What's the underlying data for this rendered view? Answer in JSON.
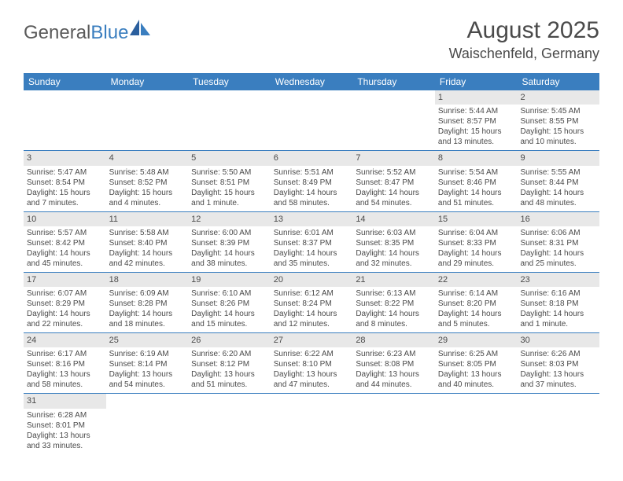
{
  "logo": {
    "general": "General",
    "blue": "Blue"
  },
  "title": "August 2025",
  "location": "Waischenfeld, Germany",
  "colors": {
    "header_bg": "#3a7ebf",
    "header_text": "#ffffff",
    "daynum_bg": "#e8e8e8",
    "body_text": "#4a4a4a",
    "border": "#3a7ebf"
  },
  "typography": {
    "title_fontsize": 30,
    "location_fontsize": 18,
    "dayheader_fontsize": 12,
    "cell_fontsize": 10
  },
  "day_names": [
    "Sunday",
    "Monday",
    "Tuesday",
    "Wednesday",
    "Thursday",
    "Friday",
    "Saturday"
  ],
  "weeks": [
    [
      null,
      null,
      null,
      null,
      null,
      {
        "n": "1",
        "sunrise": "Sunrise: 5:44 AM",
        "sunset": "Sunset: 8:57 PM",
        "day1": "Daylight: 15 hours",
        "day2": "and 13 minutes."
      },
      {
        "n": "2",
        "sunrise": "Sunrise: 5:45 AM",
        "sunset": "Sunset: 8:55 PM",
        "day1": "Daylight: 15 hours",
        "day2": "and 10 minutes."
      }
    ],
    [
      {
        "n": "3",
        "sunrise": "Sunrise: 5:47 AM",
        "sunset": "Sunset: 8:54 PM",
        "day1": "Daylight: 15 hours",
        "day2": "and 7 minutes."
      },
      {
        "n": "4",
        "sunrise": "Sunrise: 5:48 AM",
        "sunset": "Sunset: 8:52 PM",
        "day1": "Daylight: 15 hours",
        "day2": "and 4 minutes."
      },
      {
        "n": "5",
        "sunrise": "Sunrise: 5:50 AM",
        "sunset": "Sunset: 8:51 PM",
        "day1": "Daylight: 15 hours",
        "day2": "and 1 minute."
      },
      {
        "n": "6",
        "sunrise": "Sunrise: 5:51 AM",
        "sunset": "Sunset: 8:49 PM",
        "day1": "Daylight: 14 hours",
        "day2": "and 58 minutes."
      },
      {
        "n": "7",
        "sunrise": "Sunrise: 5:52 AM",
        "sunset": "Sunset: 8:47 PM",
        "day1": "Daylight: 14 hours",
        "day2": "and 54 minutes."
      },
      {
        "n": "8",
        "sunrise": "Sunrise: 5:54 AM",
        "sunset": "Sunset: 8:46 PM",
        "day1": "Daylight: 14 hours",
        "day2": "and 51 minutes."
      },
      {
        "n": "9",
        "sunrise": "Sunrise: 5:55 AM",
        "sunset": "Sunset: 8:44 PM",
        "day1": "Daylight: 14 hours",
        "day2": "and 48 minutes."
      }
    ],
    [
      {
        "n": "10",
        "sunrise": "Sunrise: 5:57 AM",
        "sunset": "Sunset: 8:42 PM",
        "day1": "Daylight: 14 hours",
        "day2": "and 45 minutes."
      },
      {
        "n": "11",
        "sunrise": "Sunrise: 5:58 AM",
        "sunset": "Sunset: 8:40 PM",
        "day1": "Daylight: 14 hours",
        "day2": "and 42 minutes."
      },
      {
        "n": "12",
        "sunrise": "Sunrise: 6:00 AM",
        "sunset": "Sunset: 8:39 PM",
        "day1": "Daylight: 14 hours",
        "day2": "and 38 minutes."
      },
      {
        "n": "13",
        "sunrise": "Sunrise: 6:01 AM",
        "sunset": "Sunset: 8:37 PM",
        "day1": "Daylight: 14 hours",
        "day2": "and 35 minutes."
      },
      {
        "n": "14",
        "sunrise": "Sunrise: 6:03 AM",
        "sunset": "Sunset: 8:35 PM",
        "day1": "Daylight: 14 hours",
        "day2": "and 32 minutes."
      },
      {
        "n": "15",
        "sunrise": "Sunrise: 6:04 AM",
        "sunset": "Sunset: 8:33 PM",
        "day1": "Daylight: 14 hours",
        "day2": "and 29 minutes."
      },
      {
        "n": "16",
        "sunrise": "Sunrise: 6:06 AM",
        "sunset": "Sunset: 8:31 PM",
        "day1": "Daylight: 14 hours",
        "day2": "and 25 minutes."
      }
    ],
    [
      {
        "n": "17",
        "sunrise": "Sunrise: 6:07 AM",
        "sunset": "Sunset: 8:29 PM",
        "day1": "Daylight: 14 hours",
        "day2": "and 22 minutes."
      },
      {
        "n": "18",
        "sunrise": "Sunrise: 6:09 AM",
        "sunset": "Sunset: 8:28 PM",
        "day1": "Daylight: 14 hours",
        "day2": "and 18 minutes."
      },
      {
        "n": "19",
        "sunrise": "Sunrise: 6:10 AM",
        "sunset": "Sunset: 8:26 PM",
        "day1": "Daylight: 14 hours",
        "day2": "and 15 minutes."
      },
      {
        "n": "20",
        "sunrise": "Sunrise: 6:12 AM",
        "sunset": "Sunset: 8:24 PM",
        "day1": "Daylight: 14 hours",
        "day2": "and 12 minutes."
      },
      {
        "n": "21",
        "sunrise": "Sunrise: 6:13 AM",
        "sunset": "Sunset: 8:22 PM",
        "day1": "Daylight: 14 hours",
        "day2": "and 8 minutes."
      },
      {
        "n": "22",
        "sunrise": "Sunrise: 6:14 AM",
        "sunset": "Sunset: 8:20 PM",
        "day1": "Daylight: 14 hours",
        "day2": "and 5 minutes."
      },
      {
        "n": "23",
        "sunrise": "Sunrise: 6:16 AM",
        "sunset": "Sunset: 8:18 PM",
        "day1": "Daylight: 14 hours",
        "day2": "and 1 minute."
      }
    ],
    [
      {
        "n": "24",
        "sunrise": "Sunrise: 6:17 AM",
        "sunset": "Sunset: 8:16 PM",
        "day1": "Daylight: 13 hours",
        "day2": "and 58 minutes."
      },
      {
        "n": "25",
        "sunrise": "Sunrise: 6:19 AM",
        "sunset": "Sunset: 8:14 PM",
        "day1": "Daylight: 13 hours",
        "day2": "and 54 minutes."
      },
      {
        "n": "26",
        "sunrise": "Sunrise: 6:20 AM",
        "sunset": "Sunset: 8:12 PM",
        "day1": "Daylight: 13 hours",
        "day2": "and 51 minutes."
      },
      {
        "n": "27",
        "sunrise": "Sunrise: 6:22 AM",
        "sunset": "Sunset: 8:10 PM",
        "day1": "Daylight: 13 hours",
        "day2": "and 47 minutes."
      },
      {
        "n": "28",
        "sunrise": "Sunrise: 6:23 AM",
        "sunset": "Sunset: 8:08 PM",
        "day1": "Daylight: 13 hours",
        "day2": "and 44 minutes."
      },
      {
        "n": "29",
        "sunrise": "Sunrise: 6:25 AM",
        "sunset": "Sunset: 8:05 PM",
        "day1": "Daylight: 13 hours",
        "day2": "and 40 minutes."
      },
      {
        "n": "30",
        "sunrise": "Sunrise: 6:26 AM",
        "sunset": "Sunset: 8:03 PM",
        "day1": "Daylight: 13 hours",
        "day2": "and 37 minutes."
      }
    ],
    [
      {
        "n": "31",
        "sunrise": "Sunrise: 6:28 AM",
        "sunset": "Sunset: 8:01 PM",
        "day1": "Daylight: 13 hours",
        "day2": "and 33 minutes."
      },
      null,
      null,
      null,
      null,
      null,
      null
    ]
  ]
}
